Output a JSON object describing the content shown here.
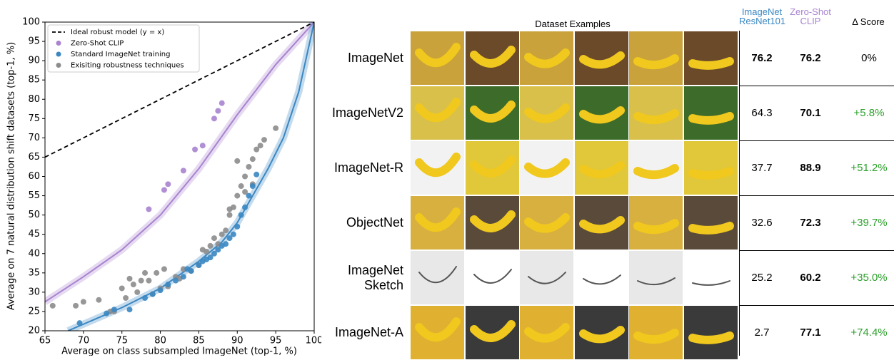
{
  "chart_data": {
    "type": "scatter",
    "x_label": "Average on class subsampled ImageNet (top-1, %)",
    "y_label": "Average on 7 natural distribution shift datasets (top-1, %)",
    "xlim": [
      65,
      100
    ],
    "xticks": [
      65,
      70,
      75,
      80,
      85,
      90,
      95,
      100
    ],
    "ylim": [
      20,
      100
    ],
    "yticks": [
      20,
      25,
      30,
      35,
      40,
      45,
      50,
      55,
      60,
      65,
      70,
      75,
      80,
      85,
      90,
      95,
      100
    ],
    "legend": "upper left",
    "series": [
      {
        "name": "Ideal robust model (y = x)",
        "color": "#000000",
        "mode": "line",
        "dash": true,
        "x": [
          65,
          100
        ],
        "values": [
          65,
          100
        ]
      },
      {
        "name": "Zero-Shot CLIP",
        "color": "#a883cf",
        "mode": "markers",
        "x": [
          78.5,
          80.5,
          81,
          83,
          84.5,
          85.5,
          87,
          87.5,
          88
        ],
        "values": [
          51.5,
          56.5,
          58,
          61.5,
          67,
          68,
          75,
          77,
          79
        ]
      },
      {
        "name": "Standard ImageNet training",
        "color": "#3a87c2",
        "mode": "markers",
        "x": [
          69.5,
          73,
          74,
          76,
          78,
          79,
          80,
          81,
          82,
          83,
          83.5,
          84,
          85,
          85.5,
          86,
          86.5,
          87,
          87.5,
          88,
          88.5,
          89,
          89.5,
          90,
          90.5,
          91,
          91.5,
          92,
          92.5
        ],
        "values": [
          22,
          24.5,
          25.5,
          25.5,
          28.5,
          29.5,
          30.5,
          32,
          33,
          34,
          36,
          35.5,
          37,
          38,
          38.5,
          39,
          40,
          41,
          42,
          42.5,
          44,
          45,
          47,
          50,
          52,
          55,
          57.5,
          60.5
        ]
      },
      {
        "name": "Exisiting robustness techniques",
        "color": "#8c8c8c",
        "mode": "markers",
        "x": [
          66,
          69,
          70,
          72,
          73.5,
          74,
          75,
          75.5,
          76,
          76.5,
          77,
          77.5,
          78,
          78.5,
          79,
          79.5,
          80,
          80.5,
          81,
          82,
          82.5,
          83,
          84,
          85,
          85.5,
          86,
          86.5,
          87,
          87.5,
          88,
          88.5,
          89,
          89.5,
          90,
          90.5,
          91,
          91.5,
          92,
          92.5,
          93,
          93.5,
          95,
          90,
          91,
          89,
          92
        ],
        "values": [
          26.5,
          26.5,
          27.5,
          28,
          25,
          25,
          31,
          28.5,
          33.5,
          32,
          30,
          33,
          35,
          33,
          29.5,
          35,
          31,
          36,
          31.5,
          34,
          33.5,
          36,
          35.5,
          37,
          41,
          40.5,
          42,
          44,
          42.5,
          45,
          46,
          50,
          52,
          55,
          57.5,
          60,
          62.5,
          64.5,
          67,
          68,
          69.5,
          72.5,
          64,
          56,
          51.5,
          58
        ]
      },
      {
        "color": "#a883cf",
        "mode": "line",
        "band": true,
        "x": [
          65,
          70,
          75,
          80,
          85,
          90,
          95,
          100
        ],
        "values": [
          27.5,
          34,
          41,
          50,
          62,
          76,
          89,
          100
        ]
      },
      {
        "color": "#3a87c2",
        "mode": "line",
        "band": true,
        "x": [
          68,
          75,
          80,
          85,
          88,
          90,
          92,
          94,
          96,
          98,
          100
        ],
        "values": [
          20,
          26,
          31,
          38,
          43,
          48,
          55,
          62,
          70,
          82,
          100
        ]
      }
    ]
  },
  "table": {
    "title": "Dataset Examples",
    "headers": [
      "ImageNet ResNet101",
      "Zero-Shot CLIP",
      "Δ Score"
    ],
    "rows": [
      [
        "ImageNet",
        76.2,
        76.2,
        "0%"
      ],
      [
        "ImageNetV2",
        64.3,
        70.1,
        "+5.8%"
      ],
      [
        "ImageNet-R",
        37.7,
        88.9,
        "+51.2%"
      ],
      [
        "ObjectNet",
        32.6,
        72.3,
        "+39.7%"
      ],
      [
        "ImageNet Sketch",
        25.2,
        60.2,
        "+35.0%"
      ],
      [
        "ImageNet-A",
        2.7,
        77.1,
        "+74.4%"
      ]
    ]
  }
}
